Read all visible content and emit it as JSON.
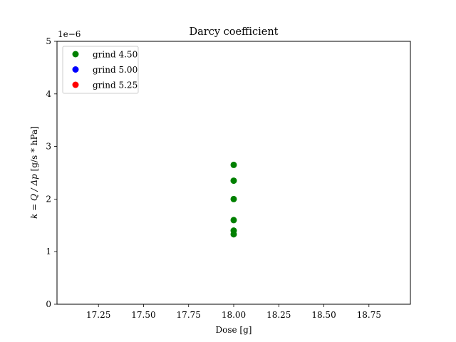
{
  "chart_data": {
    "type": "scatter",
    "title": "Darcy coefficient",
    "xlabel": "Dose [g]",
    "ylabel": {
      "math": "k = Q / Δp",
      "unit": " [g/s * hPa]"
    },
    "y_offset_text": "1e−6",
    "xlim": [
      17.02,
      18.98
    ],
    "ylim": [
      0,
      5
    ],
    "xticks": [
      17.25,
      17.5,
      17.75,
      18.0,
      18.25,
      18.5,
      18.75
    ],
    "xtick_labels": [
      "17.25",
      "17.50",
      "17.75",
      "18.00",
      "18.25",
      "18.50",
      "18.75"
    ],
    "yticks": [
      0,
      1,
      2,
      3,
      4,
      5
    ],
    "ytick_labels": [
      "0",
      "1",
      "2",
      "3",
      "4",
      "5"
    ],
    "grid": false,
    "legend_position": "top-left",
    "series": [
      {
        "name": "grind 4.50",
        "color": "#008000",
        "points": [
          {
            "x": 18.0,
            "y": 2.65
          },
          {
            "x": 18.0,
            "y": 2.35
          },
          {
            "x": 18.0,
            "y": 2.0
          },
          {
            "x": 18.0,
            "y": 1.6
          },
          {
            "x": 18.0,
            "y": 1.4
          },
          {
            "x": 18.0,
            "y": 1.33
          }
        ]
      },
      {
        "name": "grind 5.00",
        "color": "#0000ff",
        "points": []
      },
      {
        "name": "grind 5.25",
        "color": "#ff0000",
        "points": []
      }
    ]
  }
}
